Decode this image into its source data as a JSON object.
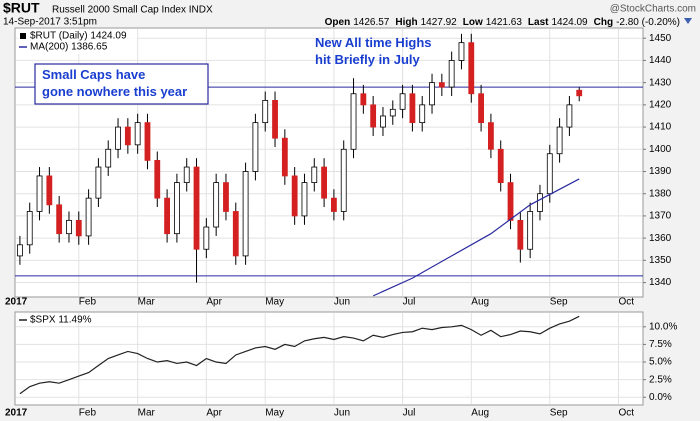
{
  "header": {
    "symbol": "$RUT",
    "name": "Russell 2000 Small Cap Index INDX",
    "date": "14-Sep-2017 3:51pm",
    "quote": [
      {
        "label": "Open",
        "value": "1426.57"
      },
      {
        "label": "High",
        "value": "1427.92"
      },
      {
        "label": "Low",
        "value": "1421.63"
      },
      {
        "label": "Last",
        "value": "1424.09"
      },
      {
        "label": "Chg",
        "value": "-2.80 (-0.20%)"
      }
    ],
    "brand": "@StockCharts.com"
  },
  "chart_data": [
    {
      "type": "candlestick",
      "legend": [
        "$RUT (Daily) 1424.09",
        "MA(200) 1386.65"
      ],
      "up_color": "#ffffff",
      "down_color": "#d42020",
      "wick_color": "#000000",
      "open": [
        1352,
        1357,
        1372,
        1388,
        1375,
        1362,
        1368,
        1361,
        1378,
        1392,
        1400,
        1410,
        1402,
        1412,
        1395,
        1378,
        1362,
        1385,
        1392,
        1355,
        1365,
        1385,
        1372,
        1352,
        1390,
        1412,
        1422,
        1405,
        1388,
        1370,
        1385,
        1392,
        1378,
        1372,
        1400,
        1425,
        1420,
        1410,
        1415,
        1418,
        1425,
        1412,
        1420,
        1430,
        1428,
        1440,
        1448,
        1425,
        1412,
        1400,
        1385,
        1368,
        1355,
        1372,
        1380,
        1398,
        1410,
        1426.57
      ],
      "high": [
        1361,
        1376,
        1392,
        1392,
        1379,
        1372,
        1372,
        1382,
        1396,
        1404,
        1414,
        1414,
        1416,
        1416,
        1399,
        1382,
        1389,
        1396,
        1396,
        1369,
        1389,
        1389,
        1376,
        1394,
        1416,
        1426,
        1426,
        1409,
        1392,
        1389,
        1396,
        1396,
        1382,
        1404,
        1432,
        1429,
        1424,
        1419,
        1422,
        1429,
        1429,
        1424,
        1434,
        1434,
        1444,
        1452,
        1452,
        1429,
        1416,
        1404,
        1389,
        1372,
        1376,
        1384,
        1402,
        1414,
        1424,
        1427.92
      ],
      "low": [
        1348,
        1353,
        1368,
        1371,
        1358,
        1358,
        1357,
        1357,
        1374,
        1388,
        1396,
        1398,
        1398,
        1391,
        1374,
        1358,
        1358,
        1381,
        1340,
        1351,
        1361,
        1368,
        1348,
        1348,
        1386,
        1408,
        1401,
        1384,
        1366,
        1366,
        1381,
        1374,
        1368,
        1368,
        1396,
        1416,
        1406,
        1406,
        1411,
        1414,
        1408,
        1408,
        1416,
        1424,
        1424,
        1436,
        1421,
        1408,
        1396,
        1381,
        1364,
        1349,
        1351,
        1368,
        1376,
        1394,
        1406,
        1421.63
      ],
      "close": [
        1357,
        1372,
        1388,
        1375,
        1362,
        1368,
        1361,
        1378,
        1392,
        1400,
        1410,
        1402,
        1412,
        1395,
        1378,
        1362,
        1385,
        1392,
        1355,
        1365,
        1385,
        1372,
        1352,
        1390,
        1412,
        1422,
        1405,
        1388,
        1370,
        1385,
        1392,
        1378,
        1372,
        1400,
        1425,
        1420,
        1410,
        1415,
        1418,
        1425,
        1412,
        1420,
        1430,
        1428,
        1440,
        1448,
        1425,
        1412,
        1400,
        1385,
        1368,
        1355,
        1372,
        1380,
        1398,
        1410,
        1420,
        1424.09
      ],
      "ma": {
        "color": "#2a2aa0",
        "x": [
          36,
          40,
          44,
          48,
          52,
          57
        ],
        "values": [
          1334,
          1342,
          1352,
          1362,
          1375,
          1386.65
        ]
      },
      "hlines": [
        1428,
        1343
      ],
      "hline_color": "#2a2aa0",
      "annotations": [
        "Small Caps have gone nowhere this year",
        "New All time Highs hit Briefly in July"
      ],
      "xlim": [
        -0.5,
        63.5
      ],
      "xticks": [
        {
          "value": -0.5,
          "label": "2017"
        },
        {
          "value": 6,
          "label": "Feb"
        },
        {
          "value": 12,
          "label": "Mar"
        },
        {
          "value": 19,
          "label": "Apr"
        },
        {
          "value": 25,
          "label": "May"
        },
        {
          "value": 32,
          "label": "Jun"
        },
        {
          "value": 39,
          "label": "Jul"
        },
        {
          "value": 46,
          "label": "Aug"
        },
        {
          "value": 54,
          "label": "Sep"
        },
        {
          "value": 61,
          "label": "Oct"
        }
      ],
      "ylim": [
        1333.5,
        1454.6
      ],
      "yticks": [
        1340,
        1350,
        1360,
        1370,
        1380,
        1390,
        1400,
        1410,
        1420,
        1430,
        1440,
        1450
      ],
      "grid": true
    },
    {
      "type": "line",
      "legend": [
        "$SPX 11.49%"
      ],
      "color": "#222222",
      "values": [
        0.5,
        1.5,
        2.0,
        2.2,
        2.0,
        2.5,
        3.0,
        3.5,
        4.5,
        5.5,
        6.0,
        6.5,
        6.2,
        5.5,
        5.0,
        5.2,
        4.8,
        5.0,
        4.5,
        5.5,
        5.0,
        4.8,
        6.0,
        6.5,
        7.0,
        7.2,
        6.8,
        7.5,
        7.2,
        8.0,
        8.3,
        8.5,
        8.2,
        8.6,
        8.4,
        8.0,
        8.8,
        8.5,
        8.9,
        9.2,
        9.3,
        9.8,
        9.6,
        9.9,
        10.0,
        10.2,
        9.6,
        8.8,
        9.5,
        8.6,
        8.9,
        9.4,
        9.3,
        9.0,
        9.8,
        10.4,
        10.8,
        11.49
      ],
      "ylim": [
        -1.1,
        12.1
      ],
      "yticks": [
        {
          "value": 0,
          "label": "0.0%"
        },
        {
          "value": 2.5,
          "label": "2.5%"
        },
        {
          "value": 5,
          "label": "5.0%"
        },
        {
          "value": 7.5,
          "label": "7.5%"
        },
        {
          "value": 10,
          "label": "10.0%"
        }
      ],
      "grid": true
    }
  ]
}
